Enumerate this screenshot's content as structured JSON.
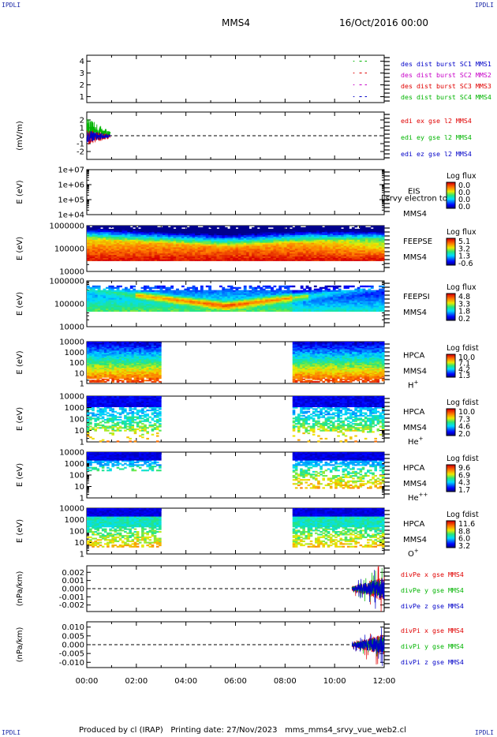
{
  "corners": {
    "tl": "IPDLI",
    "tr": "IPDLI",
    "bl": "IPDLI",
    "br": "IPDLI"
  },
  "header": {
    "spacecraft": "MMS4",
    "date": "16/Oct/2016 00:00"
  },
  "footer": {
    "produced": "Produced by cl (IRAP)",
    "printing": "Printing date: 27/Nov/2023",
    "file": "mms_mms4_srvy_vue_web2.cl"
  },
  "x_axis": {
    "ticks": [
      "00:00",
      "02:00",
      "04:00",
      "06:00",
      "08:00",
      "10:00",
      "12:00"
    ]
  },
  "chart_data": [
    {
      "type": "line",
      "panel": "burst",
      "yticks": [
        "1",
        "2",
        "3",
        "4"
      ],
      "ylim": [
        0.5,
        4.5
      ],
      "legend": [
        {
          "text": "des dist burst SC1 MMS1",
          "color": "#0000c8"
        },
        {
          "text": "des dist burst SC2 MMS2",
          "color": "#c800c8"
        },
        {
          "text": "des dist burst SC3 MMS3",
          "color": "#e00000"
        },
        {
          "text": "des dist burst SC4 MMS4",
          "color": "#00b400"
        }
      ]
    },
    {
      "type": "line",
      "panel": "edi",
      "ylabel": "(mV/m)",
      "yticks": [
        "-2",
        "-1",
        "0",
        "1",
        "2"
      ],
      "ylim": [
        -3,
        3
      ],
      "legend": [
        {
          "text": "edi ex gse l2 MMS4",
          "color": "#e00000"
        },
        {
          "text": "edi ey gse l2 MMS4",
          "color": "#00b400"
        },
        {
          "text": "edi ez gse l2 MMS4",
          "color": "#0000c8"
        }
      ]
    },
    {
      "type": "heatmap",
      "panel": "eis",
      "ylabel": "E (eV)",
      "yticks": [
        "1e+04",
        "1e+05",
        "1e+06",
        "1e+07"
      ],
      "labels": [
        "EIS",
        "MMS4"
      ],
      "overlap_text": "Lsrvy electron to",
      "cbar_title": "Log flux",
      "cbar_ticks": [
        "0.0",
        "0.0",
        "0.0",
        "0.0"
      ]
    },
    {
      "type": "heatmap",
      "panel": "feepse",
      "ylabel": "E (eV)",
      "yticks": [
        "10000",
        "100000",
        "1000000"
      ],
      "labels": [
        "FEEPSE",
        "MMS4"
      ],
      "cbar_title": "Log flux",
      "cbar_ticks": [
        "5.1",
        "3.2",
        "1.3",
        "-0.6"
      ]
    },
    {
      "type": "heatmap",
      "panel": "feepsi",
      "ylabel": "E (eV)",
      "yticks": [
        "10000",
        "100000",
        "1000000"
      ],
      "labels": [
        "FEEPSI",
        "MMS4"
      ],
      "cbar_title": "Log flux",
      "cbar_ticks": [
        "4.8",
        "3.3",
        "1.8",
        "0.2"
      ]
    },
    {
      "type": "heatmap",
      "panel": "hpca-h",
      "ylabel": "E (eV)",
      "yticks": [
        "1",
        "10",
        "100",
        "1000",
        "10000"
      ],
      "labels": [
        "HPCA",
        "MMS4"
      ],
      "species": "H",
      "species_sup": "+",
      "cbar_title": "Log fdist",
      "cbar_ticks": [
        "10.0",
        "7.1",
        "4.2",
        "1.3"
      ]
    },
    {
      "type": "heatmap",
      "panel": "hpca-he",
      "ylabel": "E (eV)",
      "yticks": [
        "1",
        "10",
        "100",
        "1000",
        "10000"
      ],
      "labels": [
        "HPCA",
        "MMS4"
      ],
      "species": "He",
      "species_sup": "+",
      "cbar_title": "Log fdist",
      "cbar_ticks": [
        "10.0",
        "7.3",
        "4.6",
        "2.0"
      ]
    },
    {
      "type": "heatmap",
      "panel": "hpca-hepp",
      "ylabel": "E (eV)",
      "yticks": [
        "1",
        "10",
        "100",
        "1000",
        "10000"
      ],
      "labels": [
        "HPCA",
        "MMS4"
      ],
      "species": "He",
      "species_sup": "++",
      "cbar_title": "Log fdist",
      "cbar_ticks": [
        "9.6",
        "6.9",
        "4.3",
        "1.7"
      ]
    },
    {
      "type": "heatmap",
      "panel": "hpca-o",
      "ylabel": "E (eV)",
      "yticks": [
        "1",
        "10",
        "100",
        "1000",
        "10000"
      ],
      "labels": [
        "HPCA",
        "MMS4"
      ],
      "species": "O",
      "species_sup": "+",
      "cbar_title": "Log fdist",
      "cbar_ticks": [
        "11.6",
        "8.8",
        "6.0",
        "3.2"
      ]
    },
    {
      "type": "line",
      "panel": "divpe",
      "ylabel": "(nPa/km)",
      "yticks": [
        "-0.002",
        "-0.001",
        "0.000",
        "0.001",
        "0.002"
      ],
      "ylim": [
        -0.0028,
        0.0028
      ],
      "legend": [
        {
          "text": "divPe x gse MMS4",
          "color": "#e00000"
        },
        {
          "text": "divPe y gse MMS4",
          "color": "#00b400"
        },
        {
          "text": "divPe z gse MMS4",
          "color": "#0000c8"
        }
      ]
    },
    {
      "type": "line",
      "panel": "divpi",
      "ylabel": "(nPa/km)",
      "yticks": [
        "-0.010",
        "-0.005",
        "0.000",
        "0.005",
        "0.010"
      ],
      "ylim": [
        -0.013,
        0.013
      ],
      "legend": [
        {
          "text": "divPi x gse MMS4",
          "color": "#e00000"
        },
        {
          "text": "divPi y gse MMS4",
          "color": "#00b400"
        },
        {
          "text": "divPi z gse MMS4",
          "color": "#0000c8"
        }
      ]
    }
  ]
}
